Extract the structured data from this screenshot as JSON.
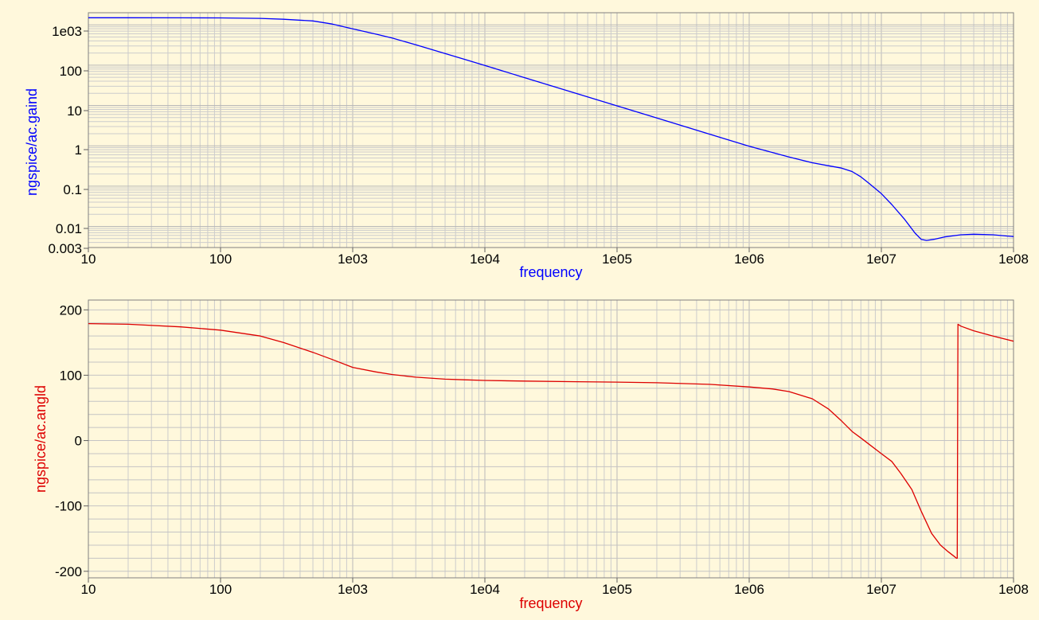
{
  "chart_data": [
    {
      "type": "line",
      "xscale": "log",
      "yscale": "log",
      "xlim": [
        10,
        100000000
      ],
      "ylim": [
        0.003,
        2000
      ],
      "xlabel": "frequency",
      "ylabel": "ngspice/ac.gaind",
      "x_ticks": [
        "10",
        "100",
        "1e03",
        "1e04",
        "1e05",
        "1e06",
        "1e07",
        "1e08"
      ],
      "y_ticks": [
        "1e03",
        "100",
        "10",
        "1",
        "0.1",
        "0.01",
        "0.003"
      ],
      "grid": true,
      "series": [
        {
          "color": "#0000ff",
          "x": [
            10,
            20,
            50,
            100,
            200,
            300,
            500,
            700,
            1000,
            1500,
            2000,
            3000,
            5000,
            7000,
            10000,
            20000,
            50000,
            100000,
            200000,
            500000,
            1000000,
            2000000,
            3000000,
            4000000,
            5000000,
            6000000,
            7000000,
            8000000,
            10000000,
            12000000,
            15000000,
            18000000,
            20000000,
            22000000,
            25000000,
            30000000,
            40000000,
            50000000,
            70000000,
            100000000
          ],
          "values": [
            1500,
            1500,
            1498,
            1490,
            1450,
            1380,
            1250,
            1050,
            800,
            590,
            470,
            320,
            195,
            140,
            98,
            49,
            19.6,
            9.8,
            4.9,
            1.95,
            0.98,
            0.53,
            0.38,
            0.32,
            0.28,
            0.23,
            0.17,
            0.12,
            0.065,
            0.035,
            0.015,
            0.0068,
            0.0048,
            0.0045,
            0.0048,
            0.0055,
            0.0062,
            0.0064,
            0.0062,
            0.0056
          ]
        }
      ]
    },
    {
      "type": "line",
      "xscale": "log",
      "xlim": [
        10,
        100000000
      ],
      "ylim": [
        -210,
        215
      ],
      "xlabel": "frequency",
      "ylabel": "ngspice/ac.angld",
      "x_ticks": [
        "10",
        "100",
        "1e03",
        "1e04",
        "1e05",
        "1e06",
        "1e07",
        "1e08"
      ],
      "y_ticks": [
        "200",
        "100",
        "0",
        "-100",
        "-200"
      ],
      "grid": true,
      "series": [
        {
          "color": "#dd0000",
          "x": [
            10,
            20,
            50,
            100,
            200,
            300,
            500,
            700,
            1000,
            1500,
            2000,
            3000,
            5000,
            7000,
            10000,
            20000,
            50000,
            100000,
            200000,
            500000,
            1000000,
            1500000,
            2000000,
            3000000,
            4000000,
            5000000,
            6000000,
            7000000,
            8000000,
            10000000,
            12000000,
            14000000,
            17000000,
            20000000,
            24000000,
            28000000,
            32000000,
            36000000,
            37000000,
            37500000,
            38000000,
            40000000,
            50000000,
            70000000,
            100000000
          ],
          "values": [
            179,
            178,
            174,
            169,
            160,
            150,
            135,
            124,
            112,
            105,
            101,
            97,
            94,
            93,
            92,
            91,
            90,
            89.5,
            88.5,
            86,
            82,
            79,
            75,
            64,
            48,
            30,
            14,
            4,
            -5,
            -20,
            -32,
            -50,
            -75,
            -108,
            -142,
            -160,
            -170,
            -178,
            -180,
            -180,
            178,
            175,
            168,
            160,
            152
          ]
        }
      ]
    }
  ]
}
